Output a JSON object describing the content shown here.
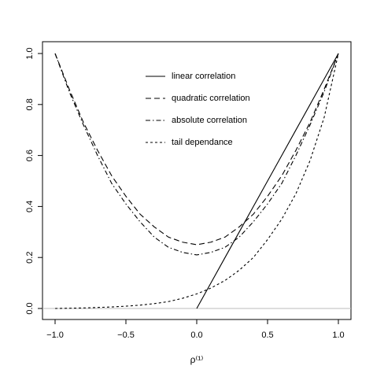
{
  "chart_data": {
    "type": "line",
    "x_label": "ρ⁽¹⁾",
    "x": [
      -1.0,
      -0.9,
      -0.8,
      -0.7,
      -0.6,
      -0.5,
      -0.4,
      -0.3,
      -0.2,
      -0.1,
      0.0,
      0.1,
      0.2,
      0.3,
      0.4,
      0.5,
      0.6,
      0.7,
      0.8,
      0.9,
      1.0
    ],
    "series": [
      {
        "name": "linear correlation",
        "color": "#000000",
        "dash": "none",
        "values": [
          null,
          null,
          null,
          null,
          null,
          null,
          null,
          null,
          null,
          null,
          0.0,
          0.1,
          0.2,
          0.3,
          0.4,
          0.5,
          0.6,
          0.7,
          0.8,
          0.9,
          1.0
        ]
      },
      {
        "name": "quadratic correlation",
        "color": "#000000",
        "dash": "7,4",
        "values": [
          1.0,
          0.86,
          0.73,
          0.62,
          0.52,
          0.44,
          0.37,
          0.32,
          0.28,
          0.26,
          0.25,
          0.26,
          0.28,
          0.32,
          0.37,
          0.44,
          0.52,
          0.62,
          0.73,
          0.86,
          1.0
        ]
      },
      {
        "name": "absolute correlation",
        "color": "#000000",
        "dash": "6,3,1.5,3",
        "values": [
          1.0,
          0.85,
          0.72,
          0.6,
          0.49,
          0.41,
          0.34,
          0.28,
          0.24,
          0.22,
          0.21,
          0.22,
          0.24,
          0.28,
          0.34,
          0.41,
          0.49,
          0.6,
          0.72,
          0.85,
          1.0
        ]
      },
      {
        "name": "tail dependance",
        "color": "#000000",
        "dash": "3,3",
        "values": [
          0.0,
          0.001,
          0.002,
          0.004,
          0.006,
          0.009,
          0.013,
          0.019,
          0.027,
          0.04,
          0.057,
          0.08,
          0.11,
          0.15,
          0.2,
          0.27,
          0.35,
          0.45,
          0.58,
          0.75,
          1.0
        ]
      }
    ],
    "hline": 0,
    "xlim": [
      -1.0,
      1.0
    ],
    "ylim": [
      0.0,
      1.0
    ],
    "xticks": [
      {
        "value": -1.0,
        "label": "−1.0"
      },
      {
        "value": -0.5,
        "label": "−0.5"
      },
      {
        "value": 0.0,
        "label": "0.0"
      },
      {
        "value": 0.5,
        "label": "0.5"
      },
      {
        "value": 1.0,
        "label": "1.0"
      }
    ],
    "yticks": [
      {
        "value": 0.0,
        "label": "0.0"
      },
      {
        "value": 0.2,
        "label": "0.2"
      },
      {
        "value": 0.4,
        "label": "0.4"
      },
      {
        "value": 0.6,
        "label": "0.6"
      },
      {
        "value": 0.8,
        "label": "0.8"
      },
      {
        "value": 1.0,
        "label": "1.0"
      }
    ],
    "legend": "top"
  }
}
